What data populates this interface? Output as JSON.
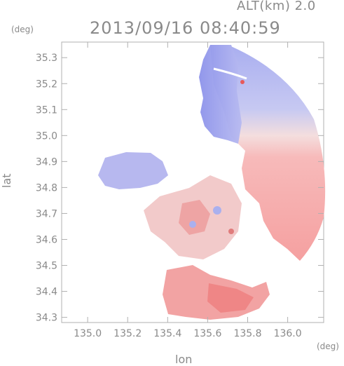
{
  "header": {
    "altitude": "ALT(km) 2.0",
    "datetime": "2013/09/16 08:40:59"
  },
  "axes": {
    "y_unit": "(deg)",
    "x_unit": "(deg)",
    "y_label": "lat",
    "x_label": "lon"
  },
  "chart_data": {
    "type": "heatmap",
    "xlabel": "lon",
    "ylabel": "lat",
    "xlim": [
      134.87,
      136.18
    ],
    "ylim": [
      34.28,
      35.36
    ],
    "x_ticks": [
      "135.0",
      "135.2",
      "135.4",
      "135.6",
      "135.8",
      "136.0"
    ],
    "y_ticks": [
      "35.3",
      "35.2",
      "35.1",
      "35.0",
      "34.9",
      "34.8",
      "34.7",
      "34.6",
      "34.5",
      "34.4",
      "34.3"
    ],
    "colors": {
      "approaching": "#8f94ea",
      "receding": "#f59a9a",
      "neutral": "#ffffff",
      "frame": "#b0b0b0"
    }
  }
}
